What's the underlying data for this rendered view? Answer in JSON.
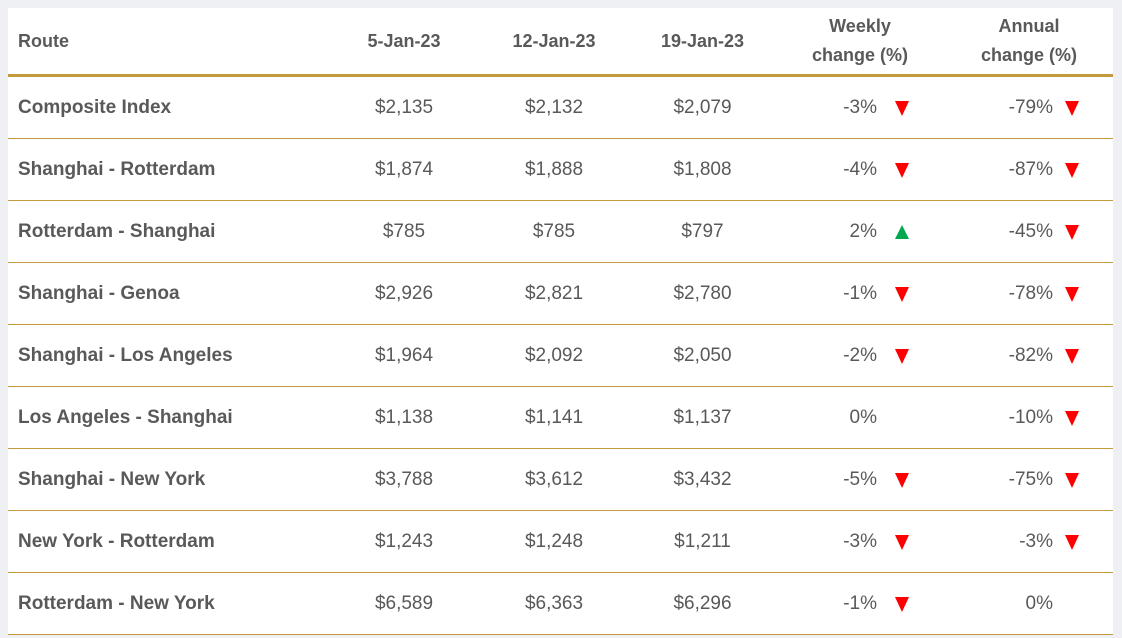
{
  "table": {
    "header": [
      "Route",
      "5-Jan-23",
      "12-Jan-23",
      "19-Jan-23",
      "Weekly change (%)",
      "Annual change (%)"
    ],
    "rows": [
      [
        "Composite Index",
        "$2,135",
        "$2,132",
        "$2,079",
        "-3%",
        "-79%"
      ],
      [
        "Shanghai - Rotterdam",
        "$1,874",
        "$1,888",
        "$1,808",
        "-4%",
        "-87%"
      ],
      [
        "Rotterdam - Shanghai",
        "$785",
        "$785",
        "$797",
        "2%",
        "-45%"
      ],
      [
        "Shanghai - Genoa",
        "$2,926",
        "$2,821",
        "$2,780",
        "-1%",
        "-78%"
      ],
      [
        "Shanghai - Los Angeles",
        "$1,964",
        "$2,092",
        "$2,050",
        "-2%",
        "-82%"
      ],
      [
        "Los Angeles - Shanghai",
        "$1,138",
        "$1,141",
        "$1,137",
        "0%",
        "-10%"
      ],
      [
        "Shanghai - New York",
        "$3,788",
        "$3,612",
        "$3,432",
        "-5%",
        "-75%"
      ],
      [
        "New York - Rotterdam",
        "$1,243",
        "$1,248",
        "$1,211",
        "-3%",
        "-3%"
      ],
      [
        "Rotterdam - New York",
        "$6,589",
        "$6,363",
        "$6,296",
        "-1%",
        "0%"
      ]
    ]
  }
}
